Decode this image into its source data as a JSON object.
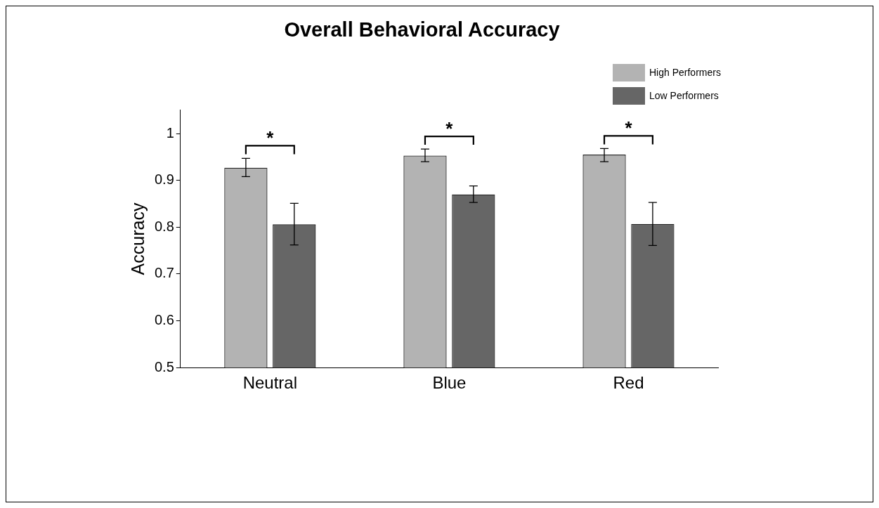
{
  "chart_data": {
    "type": "bar",
    "title": "Overall Behavioral Accuracy",
    "ylabel": "Accuracy",
    "categories": [
      "Neutral",
      "Blue",
      "Red"
    ],
    "series": [
      {
        "name": "High Performers",
        "color": "#b3b3b3",
        "values": [
          0.927,
          0.953,
          0.955
        ],
        "errors": [
          [
            0.908,
            0.947
          ],
          [
            0.94,
            0.967
          ],
          [
            0.94,
            0.968
          ]
        ]
      },
      {
        "name": "Low Performers",
        "color": "#666666",
        "values": [
          0.806,
          0.87,
          0.807
        ],
        "errors": [
          [
            0.762,
            0.851
          ],
          [
            0.853,
            0.888
          ],
          [
            0.761,
            0.853
          ]
        ]
      }
    ],
    "ylim": [
      0.5,
      1.05
    ],
    "yticks": [
      0.5,
      0.6,
      0.7,
      0.8,
      0.9,
      1
    ],
    "annotations": [
      "*",
      "*",
      "*"
    ],
    "grid": false,
    "legend": "top right"
  }
}
